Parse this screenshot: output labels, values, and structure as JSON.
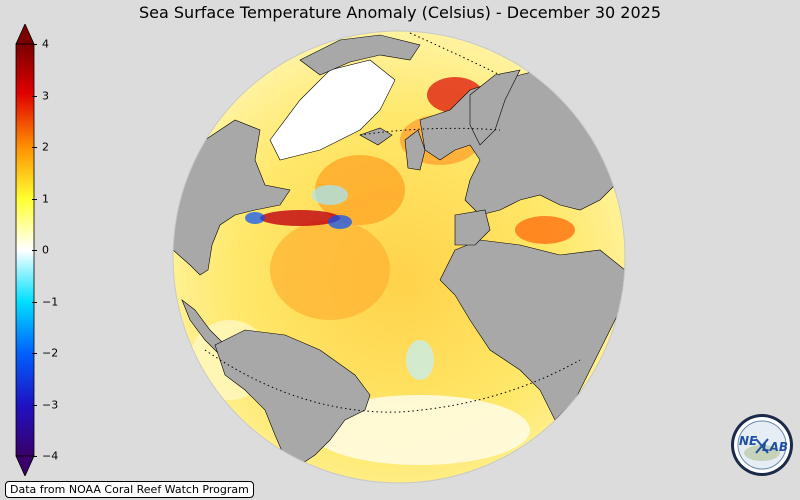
{
  "title": "Sea Surface Temperature Anomaly (Celsius) - December 30 2025",
  "colorbar": {
    "ticks": [
      "4",
      "3",
      "2",
      "1",
      "0",
      "−1",
      "−2",
      "−3",
      "−4"
    ],
    "tick_values": [
      4,
      3,
      2,
      1,
      0,
      -1,
      -2,
      -3,
      -4
    ],
    "range": [
      -4,
      4
    ],
    "colors": [
      "#3a006a",
      "#0040ff",
      "#00c8ff",
      "#ffffff",
      "#ffff30",
      "#ff9000",
      "#e00000",
      "#7a0000"
    ]
  },
  "source": "Data from NOAA Coral Reef Watch Program",
  "logo": {
    "text_left": "NE",
    "text_right": "LAB",
    "icon": "nexlab-logo-icon"
  },
  "map": {
    "projection": "orthographic",
    "land_color": "#a8a8a8",
    "ocean_base_color": "#ffea60"
  }
}
